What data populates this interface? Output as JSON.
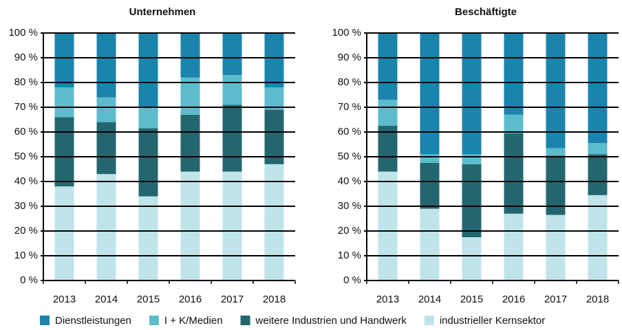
{
  "chart_data": [
    {
      "type": "stacked_bar",
      "title": "Unternehmen",
      "categories": [
        "2013",
        "2014",
        "2015",
        "2016",
        "2017",
        "2018"
      ],
      "series": [
        {
          "name": "industrieller Kernsektor",
          "color": "#bfe4ea",
          "values": [
            38,
            43,
            34,
            44,
            44,
            47
          ]
        },
        {
          "name": "weitere Industrien und Handwerk",
          "color": "#24666f",
          "values": [
            28,
            21,
            27.5,
            23,
            27,
            22
          ]
        },
        {
          "name": "I + K/Medien",
          "color": "#5cbccc",
          "values": [
            12,
            10,
            8.5,
            15,
            12,
            9
          ]
        },
        {
          "name": "Dienstleistungen",
          "color": "#1a84ac",
          "values": [
            22,
            26,
            30,
            18,
            17,
            22
          ]
        }
      ],
      "ylim": [
        0,
        100
      ],
      "yticks": [
        {
          "value": 0,
          "label": "0 %"
        },
        {
          "value": 10,
          "label": "10 %"
        },
        {
          "value": 20,
          "label": "20 %"
        },
        {
          "value": 30,
          "label": "30 %"
        },
        {
          "value": 40,
          "label": "40 %"
        },
        {
          "value": 50,
          "label": "50 %"
        },
        {
          "value": 60,
          "label": "60 %"
        },
        {
          "value": 70,
          "label": "70 %"
        },
        {
          "value": 80,
          "label": "80 %"
        },
        {
          "value": 90,
          "label": "90 %"
        },
        {
          "value": 100,
          "label": "100 %"
        }
      ],
      "grid": true
    },
    {
      "type": "stacked_bar",
      "title": "Beschäftigte",
      "categories": [
        "2013",
        "2014",
        "2015",
        "2016",
        "2017",
        "2018"
      ],
      "series": [
        {
          "name": "industrieller Kernsektor",
          "color": "#bfe4ea",
          "values": [
            44,
            29,
            17.5,
            27,
            26.5,
            34.5
          ]
        },
        {
          "name": "weitere Industrien und Handwerk",
          "color": "#24666f",
          "values": [
            18.5,
            18.5,
            29.5,
            32.5,
            24,
            16.5
          ]
        },
        {
          "name": "I + K/Medien",
          "color": "#5cbccc",
          "values": [
            10.5,
            3.5,
            4,
            7.5,
            3,
            4.5
          ]
        },
        {
          "name": "Dienstleistungen",
          "color": "#1a84ac",
          "values": [
            27,
            49,
            49,
            33,
            46.5,
            44.5
          ]
        }
      ],
      "ylim": [
        0,
        100
      ],
      "yticks": [
        {
          "value": 0,
          "label": "0 %"
        },
        {
          "value": 10,
          "label": "10 %"
        },
        {
          "value": 20,
          "label": "20 %"
        },
        {
          "value": 30,
          "label": "30 %"
        },
        {
          "value": 40,
          "label": "40 %"
        },
        {
          "value": 50,
          "label": "50 %"
        },
        {
          "value": 60,
          "label": "60 %"
        },
        {
          "value": 70,
          "label": "70 %"
        },
        {
          "value": 80,
          "label": "80 %"
        },
        {
          "value": 90,
          "label": "90 %"
        },
        {
          "value": 100,
          "label": "100 %"
        }
      ],
      "grid": true
    }
  ]
}
